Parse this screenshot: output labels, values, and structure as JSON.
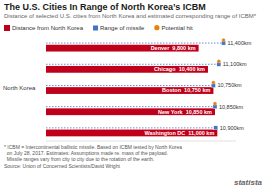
{
  "chart_data": {
    "type": "bar",
    "orientation": "horizontal",
    "title": "The U.S. Cities In Range of North Korea’s ICBM",
    "subtitle": "Distance of selected U.S. cities from North Korea and estimated corresponding range of ICBM*",
    "categories": [
      "Denver",
      "Chicago",
      "Boston",
      "New York",
      "Washington DC"
    ],
    "series": [
      {
        "name": "Distance from North Korea",
        "type": "bar",
        "color": "#c0001a",
        "values": [
          9800,
          10400,
          10750,
          10850,
          11000
        ],
        "value_labels": [
          "9,800 km",
          "10,400 km",
          "10,750 km",
          "10,850 km",
          "11,000 km"
        ]
      },
      {
        "name": "Range of missile",
        "type": "line",
        "color": "#4472c4",
        "line_style": "dotted",
        "marker": "square",
        "values": [
          11400,
          11100,
          10750,
          10850,
          10900
        ],
        "value_labels": [
          "11,400km",
          "11,100km",
          "10,750km",
          "10,850km",
          "10,900km"
        ]
      },
      {
        "name": "Potential hit",
        "type": "scatter",
        "color": "#e8820a",
        "marker": "circle",
        "values": [
          11400,
          11100,
          10750,
          10850,
          null
        ]
      }
    ],
    "xlim": [
      0,
      12200
    ],
    "data_labels": true,
    "tick_labels": false,
    "grid": false,
    "annotations": [
      "North Korea",
      "* ICBM = Intercontinental ballistic missile. Based on ICBM tested by North Korea\n  on July 28, 2017. Estimates: Assumptions made re. mass of the payload.\n  Missile ranges vary from city to city due to the rotation of the earth.",
      "Source: Union of Concerned Scientists/David Wright",
      "statista"
    ]
  }
}
